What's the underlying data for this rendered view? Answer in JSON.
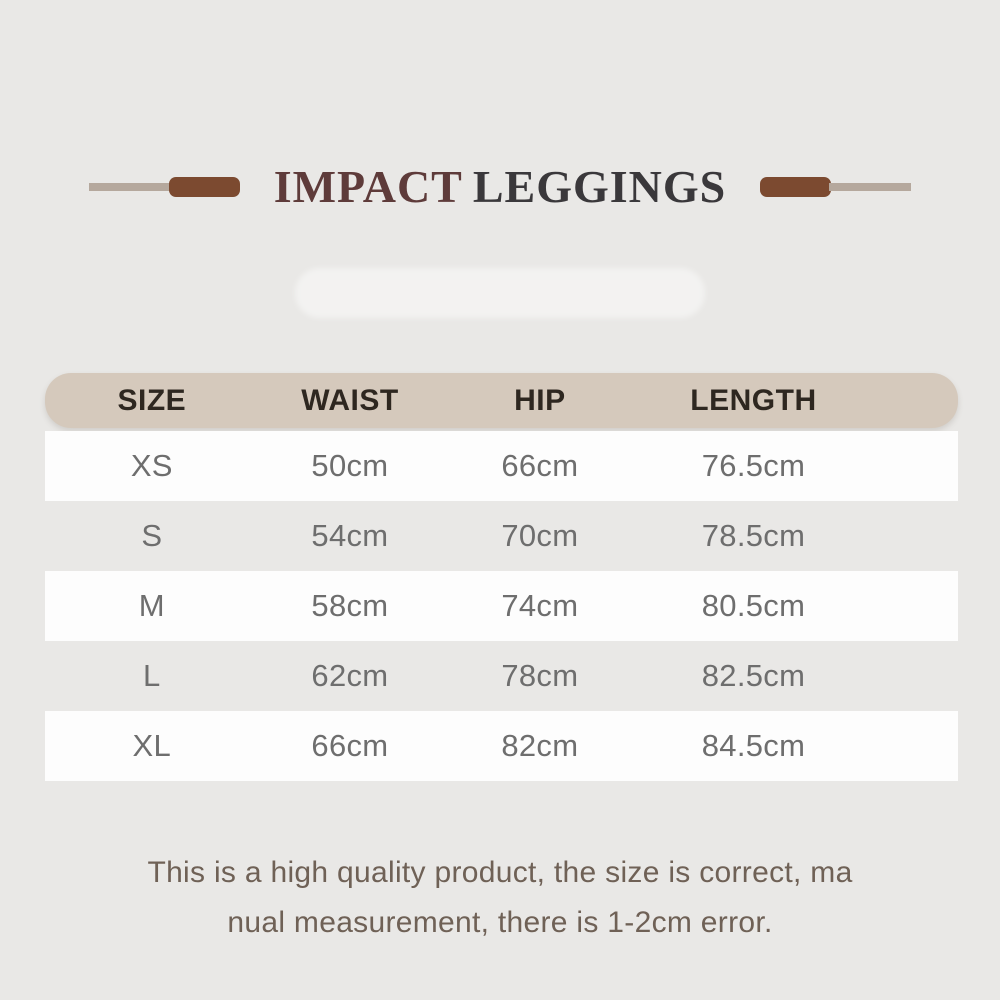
{
  "page": {
    "background_color": "#e9e8e6"
  },
  "header": {
    "title_primary": "IMPACT",
    "title_secondary": "LEGGINGS",
    "title_primary_color": "#5e3b3a",
    "title_secondary_color": "#3a383b",
    "decor_bar_color": "#7c4a30",
    "decor_line_color": "#b5a89d"
  },
  "size_chart": {
    "header_bg_color": "#d5c9bc",
    "header_text_color": "#2e2720",
    "cell_text_color": "#6e6e6e",
    "banded_row_color": "#fdfdfd",
    "columns": [
      "SIZE",
      "WAIST",
      "HIP",
      "LENGTH"
    ],
    "rows": [
      {
        "size": "XS",
        "waist": "50cm",
        "hip": "66cm",
        "length": "76.5cm"
      },
      {
        "size": "S",
        "waist": "54cm",
        "hip": "70cm",
        "length": "78.5cm"
      },
      {
        "size": "M",
        "waist": "58cm",
        "hip": "74cm",
        "length": "80.5cm"
      },
      {
        "size": "L",
        "waist": "62cm",
        "hip": "78cm",
        "length": "82.5cm"
      },
      {
        "size": "XL",
        "waist": "66cm",
        "hip": "82cm",
        "length": "84.5cm"
      }
    ]
  },
  "chart_data": {
    "type": "table",
    "title": "IMPACT LEGGINGS",
    "columns": [
      "SIZE",
      "WAIST",
      "HIP",
      "LENGTH"
    ],
    "rows": [
      [
        "XS",
        "50cm",
        "66cm",
        "76.5cm"
      ],
      [
        "S",
        "54cm",
        "70cm",
        "78.5cm"
      ],
      [
        "M",
        "58cm",
        "74cm",
        "80.5cm"
      ],
      [
        "L",
        "62cm",
        "78cm",
        "82.5cm"
      ],
      [
        "XL",
        "66cm",
        "82cm",
        "84.5cm"
      ]
    ]
  },
  "footer": {
    "line1": "This is a high quality product, the size is correct, ma",
    "line2": "nual measurement, there is 1-2cm error."
  }
}
